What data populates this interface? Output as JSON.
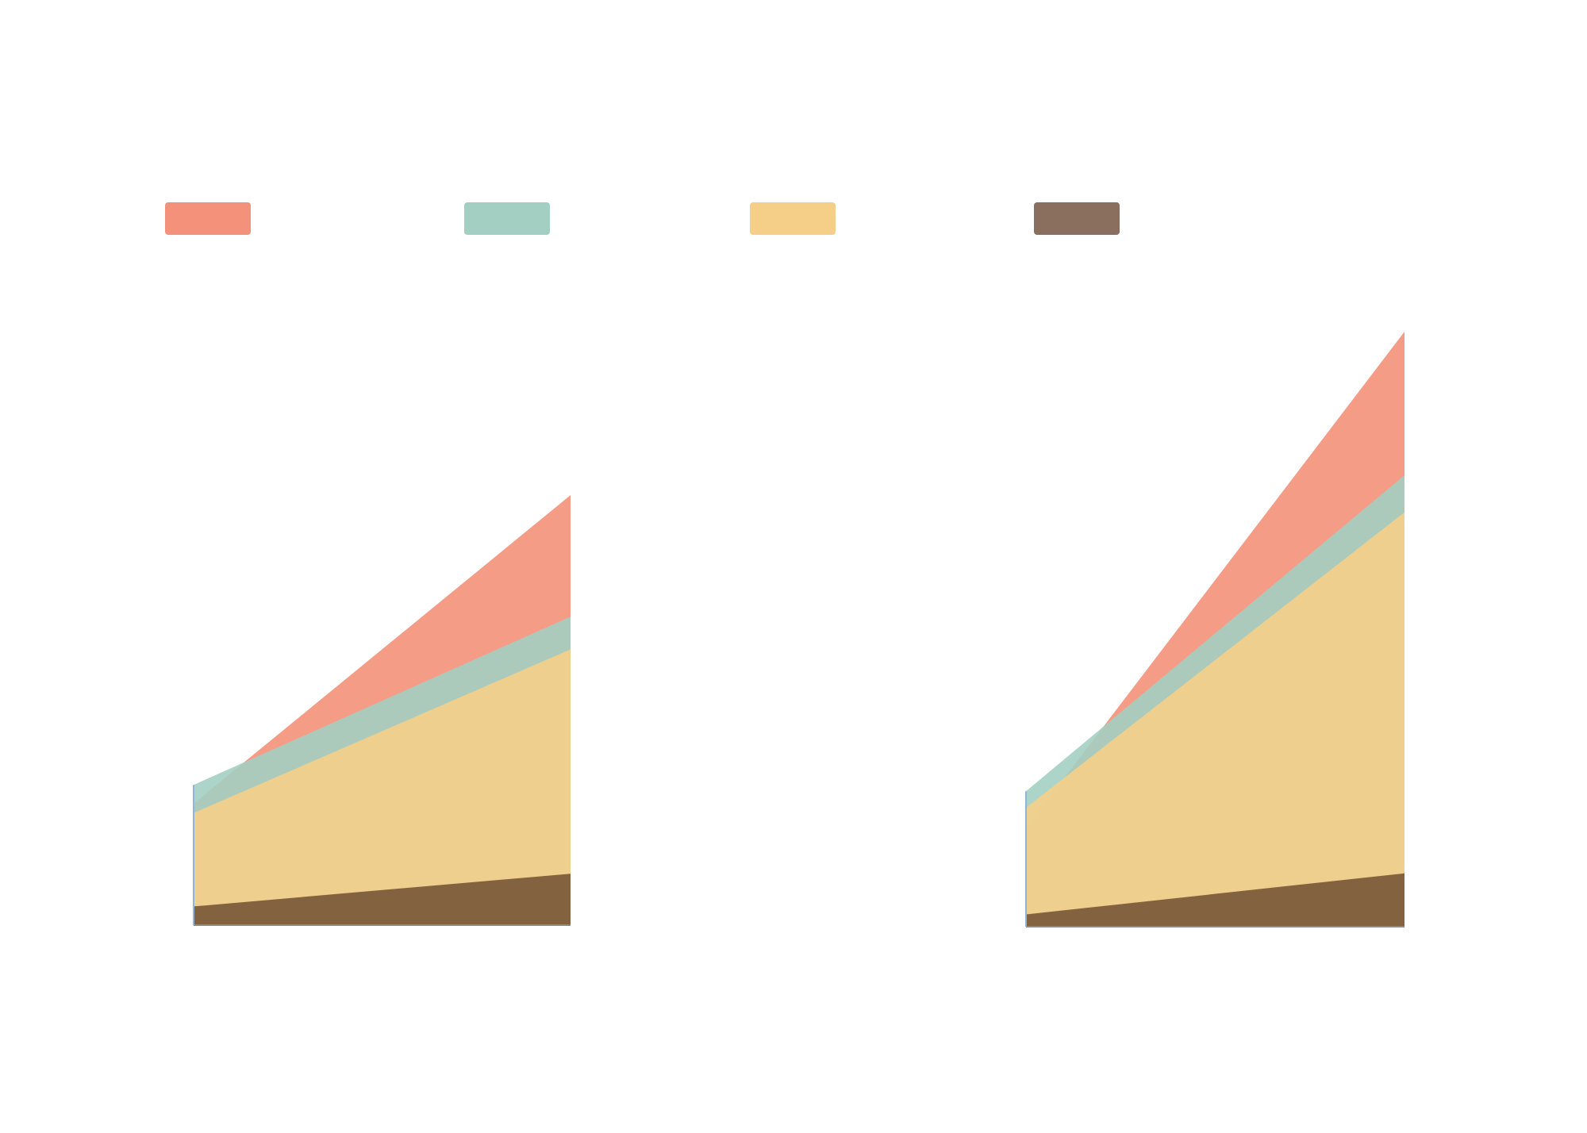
{
  "chart_data": [
    {
      "type": "area",
      "x": [
        0,
        1
      ],
      "ylim": [
        0,
        1.1
      ],
      "series": [
        {
          "color": "#f4917a",
          "values": [
            0.26,
            0.92
          ]
        },
        {
          "color": "#a3cfc2",
          "values": [
            0.3,
            0.66
          ]
        },
        {
          "color": "#f5cf88",
          "values": [
            0.24,
            0.59
          ]
        },
        {
          "color": "#81603d",
          "values": [
            0.04,
            0.11
          ]
        }
      ],
      "grid": false,
      "legend": "top"
    },
    {
      "type": "area",
      "x": [
        0,
        1
      ],
      "ylim": [
        0,
        1.45
      ],
      "series": [
        {
          "color": "#f4917a",
          "values": [
            0.24,
            1.45
          ]
        },
        {
          "color": "#a3cfc2",
          "values": [
            0.33,
            1.1
          ]
        },
        {
          "color": "#f5cf88",
          "values": [
            0.29,
            1.01
          ]
        },
        {
          "color": "#81603d",
          "values": [
            0.03,
            0.13
          ]
        }
      ],
      "grid": false,
      "legend": "top"
    }
  ],
  "legend": {
    "items": [
      {
        "color": "#f4917a"
      },
      {
        "color": "#a3cfc2"
      },
      {
        "color": "#f5cf88"
      },
      {
        "color": "#8a6e5e"
      }
    ]
  }
}
